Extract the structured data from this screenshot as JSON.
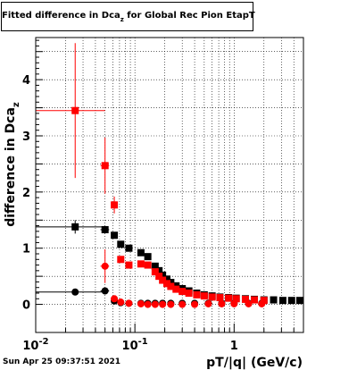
{
  "chart_data": {
    "type": "scatter",
    "title": "Fitted difference in Dca",
    "title_subscript": "z",
    "title_suffix": " for Global Rec Pion EtapT",
    "xlabel": "pT/|q| (GeV/c)",
    "ylabel": "difference in Dca",
    "ylabel_subscript": "z",
    "x_scale": "log",
    "xlim": [
      0.01,
      5
    ],
    "ylim": [
      -0.5,
      4.75
    ],
    "grid": true,
    "x_ticks": [
      {
        "value": 0.01,
        "base": "10",
        "exp": "-2"
      },
      {
        "value": 0.1,
        "base": "10",
        "exp": "-1"
      },
      {
        "value": 1,
        "base": "1",
        "exp": ""
      }
    ],
    "y_ticks": [
      {
        "value": 0,
        "label": "0"
      },
      {
        "value": 1,
        "label": "1"
      },
      {
        "value": 2,
        "label": "2"
      },
      {
        "value": 3,
        "label": "3"
      },
      {
        "value": 4,
        "label": "4"
      }
    ],
    "series": [
      {
        "color": "#000000",
        "marker": "square",
        "points": [
          {
            "x": 0.025,
            "y": 1.38,
            "xerr": [
              0.01,
              0.05
            ],
            "yerr": 0.12
          },
          {
            "x": 0.05,
            "y": 1.33,
            "xerr": [
              0.045,
              0.055
            ],
            "yerr": 0.06
          },
          {
            "x": 0.062,
            "y": 1.23
          },
          {
            "x": 0.072,
            "y": 1.07
          },
          {
            "x": 0.087,
            "y": 1.0
          },
          {
            "x": 0.115,
            "y": 0.92
          },
          {
            "x": 0.135,
            "y": 0.85
          },
          {
            "x": 0.16,
            "y": 0.68
          },
          {
            "x": 0.175,
            "y": 0.6
          },
          {
            "x": 0.19,
            "y": 0.52
          },
          {
            "x": 0.21,
            "y": 0.45
          },
          {
            "x": 0.23,
            "y": 0.39
          },
          {
            "x": 0.26,
            "y": 0.33
          },
          {
            "x": 0.3,
            "y": 0.28
          },
          {
            "x": 0.35,
            "y": 0.24
          },
          {
            "x": 0.42,
            "y": 0.2
          },
          {
            "x": 0.5,
            "y": 0.17
          },
          {
            "x": 0.6,
            "y": 0.15
          },
          {
            "x": 0.72,
            "y": 0.13
          },
          {
            "x": 0.88,
            "y": 0.12
          },
          {
            "x": 1.05,
            "y": 0.11
          },
          {
            "x": 1.3,
            "y": 0.1
          },
          {
            "x": 1.6,
            "y": 0.09
          },
          {
            "x": 2.0,
            "y": 0.08
          },
          {
            "x": 2.5,
            "y": 0.08
          },
          {
            "x": 3.1,
            "y": 0.07
          },
          {
            "x": 3.8,
            "y": 0.07
          },
          {
            "x": 4.6,
            "y": 0.07
          }
        ]
      },
      {
        "color": "#000000",
        "marker": "circle",
        "points": [
          {
            "x": 0.025,
            "y": 0.22,
            "xerr": [
              0.01,
              0.05
            ],
            "yerr": 0.06
          },
          {
            "x": 0.05,
            "y": 0.24,
            "xerr": [
              0.045,
              0.055
            ],
            "yerr": 0.04
          },
          {
            "x": 0.062,
            "y": 0.06
          },
          {
            "x": 0.072,
            "y": 0.03
          },
          {
            "x": 0.087,
            "y": 0.02
          },
          {
            "x": 0.115,
            "y": 0.02
          },
          {
            "x": 0.135,
            "y": 0.02
          },
          {
            "x": 0.16,
            "y": 0.02
          },
          {
            "x": 0.19,
            "y": 0.02
          },
          {
            "x": 0.23,
            "y": 0.02
          },
          {
            "x": 0.3,
            "y": 0.02
          },
          {
            "x": 0.4,
            "y": 0.02
          },
          {
            "x": 0.55,
            "y": 0.02
          },
          {
            "x": 0.75,
            "y": 0.02
          },
          {
            "x": 1.0,
            "y": 0.02
          },
          {
            "x": 1.4,
            "y": 0.02
          },
          {
            "x": 1.9,
            "y": 0.02
          }
        ]
      },
      {
        "color": "#ff0000",
        "marker": "square",
        "points": [
          {
            "x": 0.025,
            "y": 3.45,
            "xerr": [
              0.01,
              0.05
            ],
            "yerr": 1.2
          },
          {
            "x": 0.05,
            "y": 2.47,
            "xerr": [
              0.045,
              0.055
            ],
            "yerr": 0.5
          },
          {
            "x": 0.062,
            "y": 1.77,
            "yerr": 0.15
          },
          {
            "x": 0.072,
            "y": 0.8
          },
          {
            "x": 0.087,
            "y": 0.7
          },
          {
            "x": 0.115,
            "y": 0.72
          },
          {
            "x": 0.135,
            "y": 0.7
          },
          {
            "x": 0.16,
            "y": 0.58
          },
          {
            "x": 0.175,
            "y": 0.5
          },
          {
            "x": 0.19,
            "y": 0.43
          },
          {
            "x": 0.21,
            "y": 0.37
          },
          {
            "x": 0.23,
            "y": 0.32
          },
          {
            "x": 0.26,
            "y": 0.27
          },
          {
            "x": 0.3,
            "y": 0.23
          },
          {
            "x": 0.35,
            "y": 0.2
          },
          {
            "x": 0.42,
            "y": 0.17
          },
          {
            "x": 0.5,
            "y": 0.15
          },
          {
            "x": 0.6,
            "y": 0.13
          },
          {
            "x": 0.72,
            "y": 0.12
          },
          {
            "x": 0.88,
            "y": 0.11
          },
          {
            "x": 1.05,
            "y": 0.1
          },
          {
            "x": 1.3,
            "y": 0.09
          },
          {
            "x": 1.6,
            "y": 0.08
          },
          {
            "x": 2.0,
            "y": 0.07
          }
        ]
      },
      {
        "color": "#ff0000",
        "marker": "circle",
        "points": [
          {
            "x": 0.05,
            "y": 0.68,
            "xerr": [
              0.045,
              0.055
            ],
            "yerr": 0.3
          },
          {
            "x": 0.062,
            "y": 0.1
          },
          {
            "x": 0.072,
            "y": 0.04
          },
          {
            "x": 0.087,
            "y": 0.02
          },
          {
            "x": 0.115,
            "y": 0.01
          },
          {
            "x": 0.135,
            "y": 0.0
          },
          {
            "x": 0.16,
            "y": 0.0
          },
          {
            "x": 0.19,
            "y": 0.0
          },
          {
            "x": 0.23,
            "y": 0.0
          },
          {
            "x": 0.3,
            "y": 0.0
          },
          {
            "x": 0.4,
            "y": 0.0
          },
          {
            "x": 0.55,
            "y": 0.01
          },
          {
            "x": 0.75,
            "y": 0.01
          },
          {
            "x": 1.0,
            "y": 0.01
          },
          {
            "x": 1.4,
            "y": 0.01
          },
          {
            "x": 1.9,
            "y": 0.01
          }
        ]
      }
    ]
  },
  "footer": {
    "timestamp": "Sun Apr 25 09:37:51 2021"
  }
}
